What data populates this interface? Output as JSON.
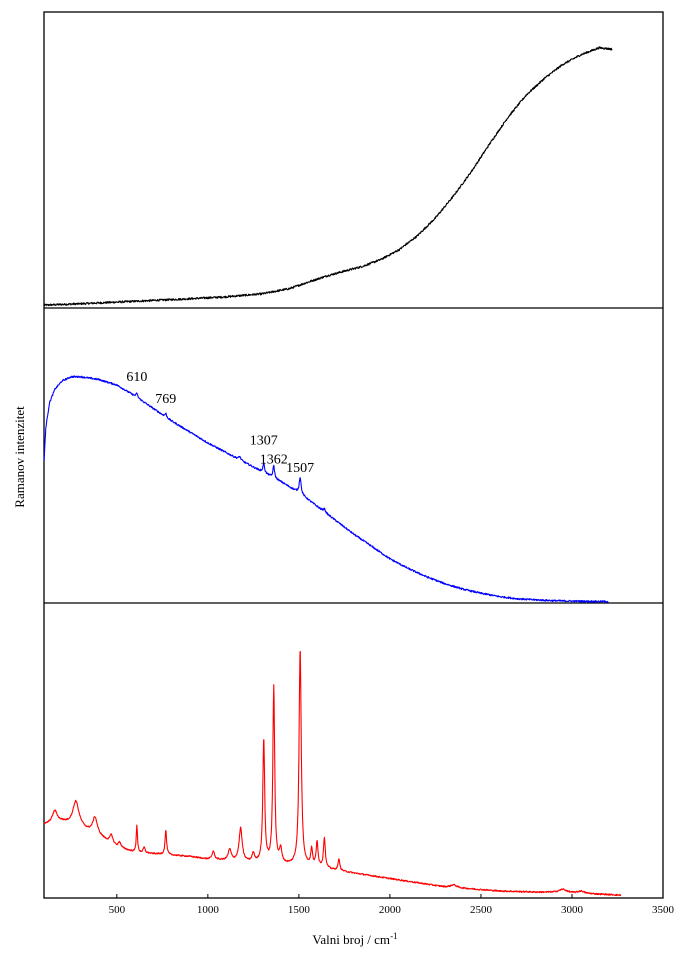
{
  "chart_data": {
    "type": "line",
    "layout": "three vertically stacked panels sharing one x axis",
    "ylabel": "Ramanov intenzitet",
    "xlabel_text": "Valni broj / cm",
    "xlabel_superscript": "-1",
    "xlim": [
      100,
      3500
    ],
    "xticks": [
      "500",
      "1000",
      "1500",
      "2000",
      "2500",
      "3000",
      "3500"
    ],
    "y_tick_labels_shown": false,
    "grid": false,
    "panels": [
      {
        "position": "top",
        "color": "#000000",
        "ylim": [
          0,
          100
        ],
        "noise": 0.35,
        "x": [
          100,
          300,
          500,
          700,
          900,
          1100,
          1300,
          1450,
          1550,
          1650,
          1750,
          1850,
          1950,
          2050,
          2150,
          2250,
          2350,
          2450,
          2550,
          2650,
          2750,
          2850,
          2950,
          3050,
          3150,
          3220
        ],
        "y": [
          0.5,
          1.0,
          1.6,
          2.2,
          2.8,
          3.5,
          4.6,
          6.5,
          8.8,
          11.0,
          12.8,
          14.5,
          17.0,
          20.5,
          25.5,
          32.0,
          40.0,
          49.0,
          59.0,
          68.5,
          76.5,
          82.5,
          87.5,
          91.0,
          93.5,
          93.0
        ]
      },
      {
        "position": "middle",
        "color": "#0000ff",
        "ylim": [
          0,
          100
        ],
        "noise": 0.3,
        "x": [
          100,
          110,
          130,
          160,
          200,
          250,
          300,
          350,
          400,
          450,
          500,
          600,
          700,
          800,
          900,
          1000,
          1100,
          1200,
          1300,
          1400,
          1500,
          1600,
          1700,
          1800,
          1900,
          2000,
          2100,
          2200,
          2300,
          2400,
          2500,
          2600,
          2700,
          2800,
          2900,
          3000,
          3100,
          3200
        ],
        "y": [
          51,
          63,
          72,
          77,
          80,
          81.5,
          81.5,
          81,
          80.5,
          79.5,
          78.5,
          74.5,
          70,
          65.5,
          61.5,
          57.5,
          54,
          50.5,
          47,
          43.5,
          39.5,
          34.5,
          29.5,
          24.5,
          20,
          15.5,
          12,
          9,
          6.5,
          4.5,
          3.0,
          1.8,
          1.0,
          0.6,
          0.3,
          0.15,
          0.05,
          0.0
        ],
        "peaks": [
          {
            "x": 610,
            "height": 1.5,
            "width": 5
          },
          {
            "x": 769,
            "height": 1.3,
            "width": 5
          },
          {
            "x": 1175,
            "height": 1.2,
            "width": 7
          },
          {
            "x": 1307,
            "height": 3.5,
            "width": 5
          },
          {
            "x": 1362,
            "height": 4.5,
            "width": 5
          },
          {
            "x": 1507,
            "height": 6.0,
            "width": 6
          },
          {
            "x": 1640,
            "height": 1.2,
            "width": 6
          }
        ],
        "annotations": [
          {
            "text": "610",
            "x": 610,
            "y": 80
          },
          {
            "text": "769",
            "x": 769,
            "y": 72
          },
          {
            "text": "1307",
            "x": 1307,
            "y": 57
          },
          {
            "text": "1362",
            "x": 1362,
            "y": 50
          },
          {
            "text": "1507",
            "x": 1507,
            "y": 47
          }
        ]
      },
      {
        "position": "bottom",
        "color": "#ff0000",
        "ylim": [
          0,
          100
        ],
        "noise": 0.25,
        "x": [
          100,
          150,
          200,
          300,
          400,
          500,
          600,
          700,
          800,
          900,
          1000,
          1100,
          1200,
          1300,
          1400,
          1500,
          1600,
          1700,
          1800,
          1900,
          2000,
          2100,
          2200,
          2300,
          2400,
          2500,
          2600,
          2700,
          2800,
          2900,
          3000,
          3100,
          3200,
          3270
        ],
        "y": [
          26,
          27,
          27,
          25,
          22,
          18,
          16,
          15.5,
          15,
          14.5,
          13.5,
          13,
          12.5,
          12,
          11.5,
          11,
          10.5,
          9.5,
          8.5,
          7.5,
          6.5,
          5.5,
          4.5,
          3.5,
          3.0,
          2.5,
          2.0,
          1.8,
          1.6,
          1.5,
          1.3,
          1.0,
          0.7,
          0.5
        ],
        "peaks": [
          {
            "x": 160,
            "height": 4,
            "width": 15
          },
          {
            "x": 275,
            "height": 9,
            "width": 20
          },
          {
            "x": 380,
            "height": 6,
            "width": 15
          },
          {
            "x": 470,
            "height": 3,
            "width": 10
          },
          {
            "x": 515,
            "height": 2,
            "width": 8
          },
          {
            "x": 610,
            "height": 10,
            "width": 4
          },
          {
            "x": 650,
            "height": 2,
            "width": 6
          },
          {
            "x": 769,
            "height": 9,
            "width": 5
          },
          {
            "x": 1030,
            "height": 3,
            "width": 8
          },
          {
            "x": 1120,
            "height": 4,
            "width": 10
          },
          {
            "x": 1180,
            "height": 12,
            "width": 10
          },
          {
            "x": 1250,
            "height": 3,
            "width": 8
          },
          {
            "x": 1307,
            "height": 45,
            "width": 6
          },
          {
            "x": 1362,
            "height": 64,
            "width": 6
          },
          {
            "x": 1400,
            "height": 5,
            "width": 8
          },
          {
            "x": 1507,
            "height": 79,
            "width": 7
          },
          {
            "x": 1570,
            "height": 6,
            "width": 6
          },
          {
            "x": 1600,
            "height": 9,
            "width": 6
          },
          {
            "x": 1640,
            "height": 11,
            "width": 6
          },
          {
            "x": 1720,
            "height": 4,
            "width": 6
          },
          {
            "x": 2350,
            "height": 1.0,
            "width": 20
          },
          {
            "x": 2950,
            "height": 1.2,
            "width": 25
          },
          {
            "x": 3050,
            "height": 0.8,
            "width": 20
          }
        ]
      }
    ]
  }
}
